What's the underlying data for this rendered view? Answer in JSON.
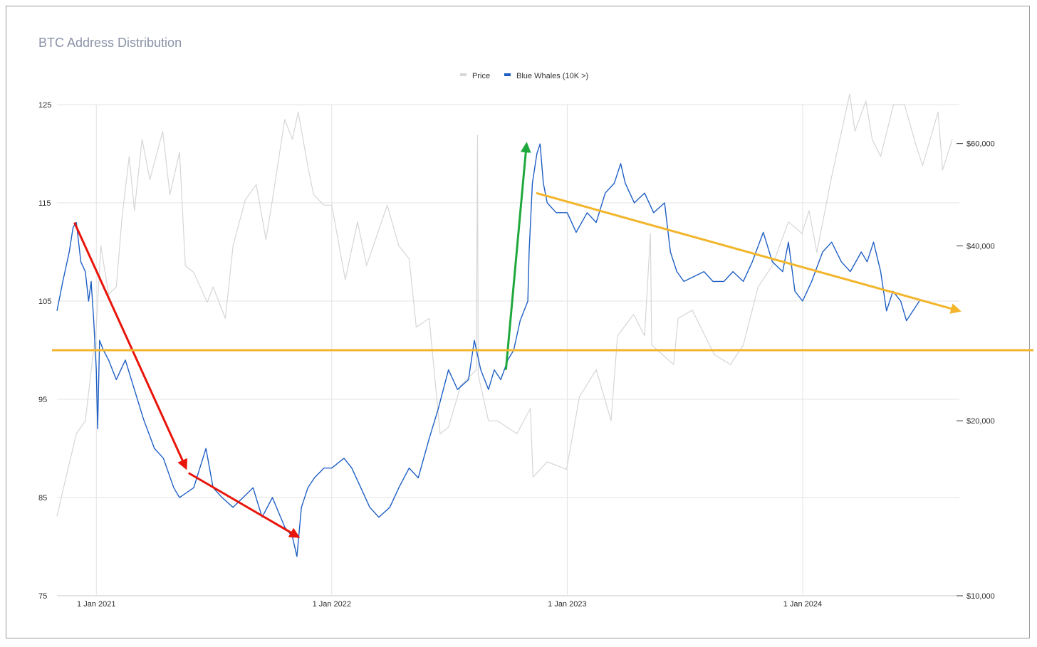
{
  "chart_data": {
    "type": "line",
    "title": "BTC Address Distribution",
    "legend": {
      "placement": "top-center",
      "items": [
        {
          "name": "Price",
          "color": "#d6d6d6"
        },
        {
          "name": "Blue Whales (10K >)",
          "color": "#1f5fc4"
        }
      ]
    },
    "x_axis": {
      "type": "date",
      "range": [
        "2020-11-01",
        "2024-08-31"
      ],
      "ticks": [
        {
          "date": "2021-01-01",
          "label": "1 Jan 2021"
        },
        {
          "date": "2022-01-01",
          "label": "1 Jan 2022"
        },
        {
          "date": "2023-01-01",
          "label": "1 Jan 2023"
        },
        {
          "date": "2024-01-01",
          "label": "1 Jan 2024"
        }
      ]
    },
    "y_axis_left": {
      "range": [
        75,
        125
      ],
      "ticks": [
        "75",
        "85",
        "95",
        "105",
        "115",
        "125"
      ],
      "grid": true
    },
    "y_axis_right": {
      "scale": "log",
      "range": [
        10000,
        70000
      ],
      "ticks": [
        {
          "value": 10000,
          "label": "$10,000"
        },
        {
          "value": 20000,
          "label": "$20,000"
        },
        {
          "value": 40000,
          "label": "$40,000"
        },
        {
          "value": 60000,
          "label": "$60,000"
        }
      ]
    },
    "series": [
      {
        "name": "Price",
        "axis": "right",
        "color": "#d6d6d6",
        "points": [
          [
            "2020-11-01",
            13700
          ],
          [
            "2020-11-15",
            16000
          ],
          [
            "2020-12-01",
            19000
          ],
          [
            "2020-12-15",
            20000
          ],
          [
            "2021-01-01",
            29000
          ],
          [
            "2021-01-08",
            40000
          ],
          [
            "2021-01-20",
            33000
          ],
          [
            "2021-02-01",
            34000
          ],
          [
            "2021-02-10",
            45000
          ],
          [
            "2021-02-21",
            57000
          ],
          [
            "2021-03-01",
            46000
          ],
          [
            "2021-03-13",
            61000
          ],
          [
            "2021-03-25",
            52000
          ],
          [
            "2021-04-14",
            63000
          ],
          [
            "2021-04-25",
            49000
          ],
          [
            "2021-05-10",
            58000
          ],
          [
            "2021-05-19",
            37000
          ],
          [
            "2021-06-01",
            36000
          ],
          [
            "2021-06-22",
            32000
          ],
          [
            "2021-07-01",
            34000
          ],
          [
            "2021-07-20",
            30000
          ],
          [
            "2021-08-01",
            40000
          ],
          [
            "2021-08-20",
            48000
          ],
          [
            "2021-09-06",
            51000
          ],
          [
            "2021-09-21",
            41000
          ],
          [
            "2021-10-01",
            48000
          ],
          [
            "2021-10-20",
            66000
          ],
          [
            "2021-11-01",
            61000
          ],
          [
            "2021-11-10",
            68000
          ],
          [
            "2021-11-26",
            54000
          ],
          [
            "2021-12-04",
            49000
          ],
          [
            "2021-12-20",
            47000
          ],
          [
            "2022-01-01",
            47000
          ],
          [
            "2022-01-22",
            35000
          ],
          [
            "2022-02-10",
            44000
          ],
          [
            "2022-02-24",
            37000
          ],
          [
            "2022-03-28",
            47000
          ],
          [
            "2022-04-15",
            40000
          ],
          [
            "2022-05-01",
            38000
          ],
          [
            "2022-05-12",
            29000
          ],
          [
            "2022-06-01",
            30000
          ],
          [
            "2022-06-18",
            19000
          ],
          [
            "2022-07-01",
            19500
          ],
          [
            "2022-07-20",
            23000
          ],
          [
            "2022-08-13",
            24500
          ],
          [
            "2022-08-15",
            62000
          ],
          [
            "2022-08-16",
            24000
          ],
          [
            "2022-09-01",
            20000
          ],
          [
            "2022-09-15",
            20000
          ],
          [
            "2022-10-15",
            19000
          ],
          [
            "2022-11-05",
            21000
          ],
          [
            "2022-11-09",
            16000
          ],
          [
            "2022-12-01",
            17000
          ],
          [
            "2022-12-31",
            16500
          ],
          [
            "2023-01-20",
            22000
          ],
          [
            "2023-02-15",
            24500
          ],
          [
            "2023-03-10",
            20000
          ],
          [
            "2023-03-20",
            28000
          ],
          [
            "2023-04-14",
            30500
          ],
          [
            "2023-05-01",
            28000
          ],
          [
            "2023-05-10",
            42000
          ],
          [
            "2023-05-12",
            27000
          ],
          [
            "2023-06-15",
            25000
          ],
          [
            "2023-06-22",
            30000
          ],
          [
            "2023-07-14",
            31000
          ],
          [
            "2023-08-17",
            26000
          ],
          [
            "2023-09-11",
            25000
          ],
          [
            "2023-10-01",
            27000
          ],
          [
            "2023-10-24",
            34000
          ],
          [
            "2023-11-15",
            37000
          ],
          [
            "2023-12-10",
            44000
          ],
          [
            "2023-12-31",
            42000
          ],
          [
            "2024-01-11",
            46000
          ],
          [
            "2024-01-23",
            39000
          ],
          [
            "2024-02-14",
            52000
          ],
          [
            "2024-03-14",
            73000
          ],
          [
            "2024-03-22",
            63000
          ],
          [
            "2024-04-08",
            71000
          ],
          [
            "2024-04-18",
            61000
          ],
          [
            "2024-05-01",
            57000
          ],
          [
            "2024-05-21",
            70000
          ],
          [
            "2024-06-07",
            70000
          ],
          [
            "2024-06-24",
            60000
          ],
          [
            "2024-07-05",
            55000
          ],
          [
            "2024-07-29",
            68000
          ],
          [
            "2024-08-05",
            54000
          ],
          [
            "2024-08-20",
            61000
          ]
        ]
      },
      {
        "name": "Blue Whales (10K >)",
        "axis": "left",
        "color": "#1f5fc4",
        "points": [
          [
            "2020-11-01",
            104
          ],
          [
            "2020-11-10",
            107
          ],
          [
            "2020-11-20",
            110
          ],
          [
            "2020-11-26",
            112.5
          ],
          [
            "2020-12-01",
            113
          ],
          [
            "2020-12-08",
            109
          ],
          [
            "2020-12-15",
            108
          ],
          [
            "2020-12-20",
            105
          ],
          [
            "2020-12-24",
            107
          ],
          [
            "2020-12-28",
            103
          ],
          [
            "2021-01-01",
            98
          ],
          [
            "2021-01-03",
            92
          ],
          [
            "2021-01-06",
            101
          ],
          [
            "2021-01-12",
            100
          ],
          [
            "2021-01-20",
            99
          ],
          [
            "2021-02-01",
            97
          ],
          [
            "2021-02-15",
            99
          ],
          [
            "2021-03-01",
            96
          ],
          [
            "2021-03-15",
            93
          ],
          [
            "2021-04-01",
            90
          ],
          [
            "2021-04-15",
            89
          ],
          [
            "2021-05-01",
            86
          ],
          [
            "2021-05-10",
            85
          ],
          [
            "2021-06-01",
            86
          ],
          [
            "2021-06-20",
            90
          ],
          [
            "2021-07-01",
            86
          ],
          [
            "2021-07-15",
            85
          ],
          [
            "2021-08-01",
            84
          ],
          [
            "2021-09-01",
            86
          ],
          [
            "2021-09-15",
            83
          ],
          [
            "2021-10-01",
            85
          ],
          [
            "2021-10-20",
            82
          ],
          [
            "2021-11-01",
            81
          ],
          [
            "2021-11-08",
            79
          ],
          [
            "2021-11-15",
            84
          ],
          [
            "2021-11-25",
            86
          ],
          [
            "2021-12-05",
            87
          ],
          [
            "2021-12-20",
            88
          ],
          [
            "2022-01-01",
            88
          ],
          [
            "2022-01-20",
            89
          ],
          [
            "2022-02-01",
            88
          ],
          [
            "2022-02-15",
            86
          ],
          [
            "2022-03-01",
            84
          ],
          [
            "2022-03-15",
            83
          ],
          [
            "2022-04-01",
            84
          ],
          [
            "2022-04-15",
            86
          ],
          [
            "2022-05-01",
            88
          ],
          [
            "2022-05-15",
            87
          ],
          [
            "2022-06-01",
            91
          ],
          [
            "2022-06-15",
            94
          ],
          [
            "2022-07-01",
            98
          ],
          [
            "2022-07-15",
            96
          ],
          [
            "2022-08-01",
            97
          ],
          [
            "2022-08-10",
            101
          ],
          [
            "2022-08-20",
            98
          ],
          [
            "2022-09-01",
            96
          ],
          [
            "2022-09-10",
            98
          ],
          [
            "2022-09-20",
            97
          ],
          [
            "2022-10-01",
            99
          ],
          [
            "2022-10-10",
            100
          ],
          [
            "2022-10-20",
            103
          ],
          [
            "2022-11-01",
            105
          ],
          [
            "2022-11-03",
            110
          ],
          [
            "2022-11-08",
            117
          ],
          [
            "2022-11-15",
            120
          ],
          [
            "2022-11-20",
            121
          ],
          [
            "2022-11-25",
            117
          ],
          [
            "2022-12-01",
            115
          ],
          [
            "2022-12-15",
            114
          ],
          [
            "2023-01-01",
            114
          ],
          [
            "2023-01-15",
            112
          ],
          [
            "2023-02-01",
            114
          ],
          [
            "2023-02-15",
            113
          ],
          [
            "2023-03-01",
            116
          ],
          [
            "2023-03-15",
            117
          ],
          [
            "2023-03-25",
            119
          ],
          [
            "2023-04-01",
            117
          ],
          [
            "2023-04-15",
            115
          ],
          [
            "2023-05-01",
            116
          ],
          [
            "2023-05-15",
            114
          ],
          [
            "2023-06-01",
            115
          ],
          [
            "2023-06-10",
            110
          ],
          [
            "2023-06-20",
            108
          ],
          [
            "2023-07-01",
            107
          ],
          [
            "2023-08-01",
            108
          ],
          [
            "2023-08-15",
            107
          ],
          [
            "2023-09-01",
            107
          ],
          [
            "2023-09-15",
            108
          ],
          [
            "2023-10-01",
            107
          ],
          [
            "2023-10-15",
            109
          ],
          [
            "2023-11-01",
            112
          ],
          [
            "2023-11-15",
            109
          ],
          [
            "2023-12-01",
            108
          ],
          [
            "2023-12-10",
            111
          ],
          [
            "2023-12-20",
            106
          ],
          [
            "2024-01-01",
            105
          ],
          [
            "2024-01-15",
            107
          ],
          [
            "2024-02-01",
            110
          ],
          [
            "2024-02-15",
            111
          ],
          [
            "2024-03-01",
            109
          ],
          [
            "2024-03-15",
            108
          ],
          [
            "2024-04-01",
            110
          ],
          [
            "2024-04-10",
            109
          ],
          [
            "2024-04-20",
            111
          ],
          [
            "2024-05-01",
            108
          ],
          [
            "2024-05-10",
            104
          ],
          [
            "2024-05-20",
            106
          ],
          [
            "2024-06-01",
            105
          ],
          [
            "2024-06-10",
            103
          ],
          [
            "2024-06-20",
            104
          ],
          [
            "2024-06-30",
            105
          ]
        ]
      }
    ],
    "annotations": [
      {
        "kind": "arrow",
        "color": "#e8150b",
        "from": [
          "2020-11-28",
          113
        ],
        "to": [
          "2021-05-20",
          88
        ]
      },
      {
        "kind": "arrow",
        "color": "#e8150b",
        "from": [
          "2021-05-24",
          87.5
        ],
        "to": [
          "2021-11-10",
          81
        ]
      },
      {
        "kind": "arrow",
        "color": "#1fa83c",
        "from": [
          "2022-09-28",
          98
        ],
        "to": [
          "2022-10-30",
          121
        ]
      },
      {
        "kind": "arrow",
        "color": "#f2b52b",
        "from": [
          "2022-11-14",
          116
        ],
        "to": [
          "2024-08-31",
          104
        ]
      },
      {
        "kind": "hline",
        "color": "#f2b52b",
        "y": 100
      }
    ]
  }
}
